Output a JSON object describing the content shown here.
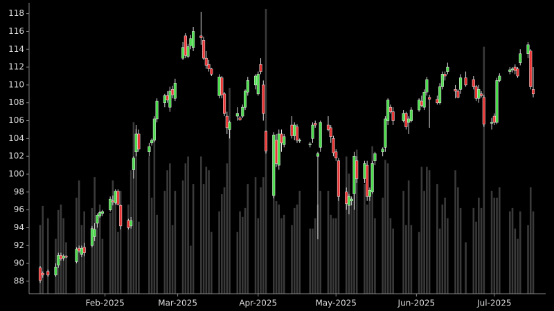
{
  "chart_data": {
    "type": "candlestick",
    "x": [
      "2025-01-07",
      "2025-01-08",
      "2025-01-10",
      "2025-01-13",
      "2025-01-14",
      "2025-01-15",
      "2025-01-16",
      "2025-01-17",
      "2025-01-21",
      "2025-01-22",
      "2025-01-23",
      "2025-01-24",
      "2025-01-27",
      "2025-01-28",
      "2025-01-29",
      "2025-01-30",
      "2025-01-31",
      "2025-02-03",
      "2025-02-04",
      "2025-02-05",
      "2025-02-06",
      "2025-02-07",
      "2025-02-10",
      "2025-02-11",
      "2025-02-12",
      "2025-02-13",
      "2025-02-14",
      "2025-02-18",
      "2025-02-19",
      "2025-02-20",
      "2025-02-21",
      "2025-02-24",
      "2025-02-25",
      "2025-02-26",
      "2025-02-27",
      "2025-02-28",
      "2025-03-03",
      "2025-03-04",
      "2025-03-05",
      "2025-03-06",
      "2025-03-07",
      "2025-03-10",
      "2025-03-11",
      "2025-03-12",
      "2025-03-13",
      "2025-03-14",
      "2025-03-17",
      "2025-03-18",
      "2025-03-19",
      "2025-03-20",
      "2025-03-21",
      "2025-03-24",
      "2025-03-25",
      "2025-03-26",
      "2025-03-27",
      "2025-03-28",
      "2025-03-31",
      "2025-04-01",
      "2025-04-02",
      "2025-04-03",
      "2025-04-04",
      "2025-04-07",
      "2025-04-08",
      "2025-04-09",
      "2025-04-10",
      "2025-04-11",
      "2025-04-14",
      "2025-04-15",
      "2025-04-16",
      "2025-04-17",
      "2025-04-21",
      "2025-04-22",
      "2025-04-23",
      "2025-04-24",
      "2025-04-25",
      "2025-04-28",
      "2025-04-29",
      "2025-04-30",
      "2025-05-01",
      "2025-05-02",
      "2025-05-05",
      "2025-05-06",
      "2025-05-07",
      "2025-05-08",
      "2025-05-09",
      "2025-05-12",
      "2025-05-13",
      "2025-05-14",
      "2025-05-15",
      "2025-05-16",
      "2025-05-19",
      "2025-05-20",
      "2025-05-21",
      "2025-05-22",
      "2025-05-23",
      "2025-05-27",
      "2025-05-28",
      "2025-05-29",
      "2025-05-30",
      "2025-06-02",
      "2025-06-03",
      "2025-06-04",
      "2025-06-05",
      "2025-06-06",
      "2025-06-09",
      "2025-06-10",
      "2025-06-11",
      "2025-06-12",
      "2025-06-13",
      "2025-06-16",
      "2025-06-17",
      "2025-06-18",
      "2025-06-20",
      "2025-06-23",
      "2025-06-24",
      "2025-06-25",
      "2025-06-26",
      "2025-06-27",
      "2025-06-30",
      "2025-07-01",
      "2025-07-02",
      "2025-07-03",
      "2025-07-07",
      "2025-07-08",
      "2025-07-09",
      "2025-07-10",
      "2025-07-11",
      "2025-07-14",
      "2025-07-15",
      "2025-07-16"
    ],
    "ohlc": [
      [
        89.5,
        89.7,
        87.8,
        88.1
      ],
      [
        88.9,
        89.1,
        88.4,
        88.7
      ],
      [
        89.1,
        89.3,
        88.5,
        88.7
      ],
      [
        88.7,
        90.0,
        88.5,
        89.6
      ],
      [
        89.8,
        91.2,
        89.5,
        90.9
      ],
      [
        90.9,
        91.2,
        90.3,
        90.5
      ],
      [
        90.6,
        91.0,
        90.3,
        90.8
      ],
      [
        90.8,
        90.9,
        90.6,
        90.7
      ],
      [
        90.2,
        91.8,
        90.0,
        91.6
      ],
      [
        91.7,
        92.0,
        91.2,
        91.4
      ],
      [
        91.0,
        92.0,
        90.7,
        91.7
      ],
      [
        91.8,
        92.3,
        90.8,
        91.2
      ],
      [
        92.0,
        94.2,
        91.8,
        93.9
      ],
      [
        93.0,
        94.5,
        92.5,
        93.8
      ],
      [
        94.5,
        95.6,
        94.0,
        95.4
      ],
      [
        95.3,
        95.9,
        95.1,
        95.7
      ],
      [
        95.6,
        96.0,
        95.3,
        95.8
      ],
      [
        96.0,
        97.5,
        95.8,
        97.2
      ],
      [
        97.0,
        97.6,
        96.5,
        96.9
      ],
      [
        96.8,
        98.3,
        96.6,
        98.1
      ],
      [
        98.1,
        98.3,
        96.5,
        96.6
      ],
      [
        96.5,
        96.6,
        93.8,
        94.2
      ],
      [
        94.8,
        95.0,
        93.8,
        94.0
      ],
      [
        94.2,
        95.2,
        93.9,
        94.8
      ],
      [
        100.5,
        102.0,
        99.5,
        101.8
      ],
      [
        102.5,
        105.5,
        102.0,
        104.5
      ],
      [
        104.5,
        105.0,
        102.5,
        102.8
      ],
      [
        102.5,
        103.5,
        102.0,
        103.1
      ],
      [
        103.5,
        104.0,
        103.2,
        103.8
      ],
      [
        103.8,
        106.5,
        103.6,
        106.2
      ],
      [
        106.2,
        108.5,
        105.8,
        108.2
      ],
      [
        108.0,
        109.0,
        107.5,
        108.8
      ],
      [
        108.8,
        109.3,
        108.0,
        108.3
      ],
      [
        107.5,
        109.8,
        107.0,
        109.3
      ],
      [
        109.5,
        109.9,
        108.5,
        108.9
      ],
      [
        108.5,
        110.7,
        108.2,
        110.2
      ],
      [
        113.0,
        114.8,
        112.8,
        114.2
      ],
      [
        115.5,
        115.8,
        113.0,
        113.3
      ],
      [
        113.2,
        114.6,
        113.0,
        114.3
      ],
      [
        114.4,
        115.6,
        114.0,
        115.2
      ],
      [
        114.2,
        116.5,
        113.8,
        116.0
      ],
      [
        115.5,
        118.2,
        114.5,
        115.3
      ],
      [
        115.0,
        115.4,
        112.8,
        113.0
      ],
      [
        113.0,
        113.8,
        111.8,
        112.2
      ],
      [
        112.3,
        112.8,
        111.5,
        111.8
      ],
      [
        111.8,
        111.9,
        111.0,
        111.2
      ],
      [
        108.8,
        111.2,
        108.5,
        110.9
      ],
      [
        110.8,
        111.0,
        108.5,
        108.9
      ],
      [
        109.0,
        109.2,
        106.5,
        106.8
      ],
      [
        106.5,
        107.0,
        104.5,
        105.2
      ],
      [
        105.0,
        106.0,
        104.0,
        105.8
      ],
      [
        106.5,
        107.5,
        106.0,
        106.8
      ],
      [
        106.3,
        106.5,
        106.0,
        106.1
      ],
      [
        106.5,
        107.8,
        106.3,
        107.5
      ],
      [
        107.5,
        109.5,
        107.2,
        109.3
      ],
      [
        109.2,
        110.9,
        108.8,
        110.5
      ],
      [
        110.0,
        111.2,
        109.5,
        111.0
      ],
      [
        109.0,
        111.5,
        108.8,
        111.2
      ],
      [
        112.3,
        113.0,
        111.2,
        111.5
      ],
      [
        110.0,
        110.5,
        106.0,
        106.8
      ],
      [
        104.8,
        104.9,
        102.3,
        102.6
      ],
      [
        97.6,
        104.7,
        97.3,
        104.4
      ],
      [
        103.8,
        104.5,
        100.8,
        101.2
      ],
      [
        101.0,
        105.0,
        100.5,
        104.5
      ],
      [
        104.5,
        105.0,
        102.5,
        103.5
      ],
      [
        103.3,
        104.5,
        103.0,
        104.2
      ],
      [
        105.5,
        106.5,
        104.0,
        104.3
      ],
      [
        104.3,
        105.8,
        103.8,
        105.5
      ],
      [
        105.3,
        105.6,
        103.5,
        103.8
      ],
      [
        103.8,
        104.0,
        103.5,
        103.8
      ],
      [
        103.3,
        103.6,
        103.0,
        103.4
      ],
      [
        104.0,
        105.8,
        103.5,
        105.5
      ],
      [
        105.7,
        106.0,
        105.2,
        105.5
      ],
      [
        102.0,
        102.5,
        92.7,
        102.3
      ],
      [
        103.0,
        106.0,
        102.5,
        105.8
      ],
      [
        105.5,
        106.5,
        104.8,
        105.0
      ],
      [
        105.2,
        105.5,
        103.5,
        104.2
      ],
      [
        104.0,
        104.3,
        102.0,
        102.4
      ],
      [
        102.5,
        102.8,
        101.5,
        101.8
      ],
      [
        101.5,
        101.8,
        97.0,
        97.5
      ],
      [
        98.0,
        98.5,
        96.0,
        96.7
      ],
      [
        96.5,
        97.8,
        95.5,
        97.5
      ],
      [
        97.0,
        97.5,
        96.5,
        97.2
      ],
      [
        97.8,
        102.5,
        96.0,
        102.0
      ],
      [
        101.5,
        102.0,
        99.0,
        99.5
      ],
      [
        99.5,
        101.5,
        99.0,
        101.2
      ],
      [
        101.0,
        101.5,
        97.0,
        97.5
      ],
      [
        97.5,
        98.5,
        97.0,
        98.2
      ],
      [
        98.0,
        101.5,
        97.8,
        101.2
      ],
      [
        101.5,
        102.5,
        101.0,
        102.3
      ],
      [
        102.5,
        103.0,
        102.0,
        102.8
      ],
      [
        103.0,
        106.5,
        102.5,
        106.2
      ],
      [
        106.0,
        108.5,
        105.5,
        108.3
      ],
      [
        107.5,
        107.8,
        106.8,
        107.0
      ],
      [
        107.0,
        107.5,
        105.5,
        106.0
      ],
      [
        106.0,
        107.2,
        105.8,
        106.8
      ],
      [
        106.8,
        107.0,
        105.0,
        105.3
      ],
      [
        105.8,
        106.5,
        104.5,
        106.2
      ],
      [
        106.0,
        107.5,
        105.8,
        107.2
      ],
      [
        107.2,
        108.5,
        107.0,
        108.3
      ],
      [
        108.2,
        108.8,
        107.5,
        107.7
      ],
      [
        107.5,
        109.5,
        107.2,
        109.2
      ],
      [
        109.2,
        110.9,
        108.8,
        110.6
      ],
      [
        108.6,
        108.9,
        105.2,
        108.4
      ],
      [
        108.4,
        108.8,
        107.8,
        108.0
      ],
      [
        108.0,
        110.2,
        107.8,
        109.8
      ],
      [
        109.8,
        111.5,
        109.5,
        111.2
      ],
      [
        111.2,
        111.5,
        110.5,
        111.0
      ],
      [
        111.5,
        112.5,
        111.2,
        112.0
      ],
      [
        109.5,
        110.0,
        108.5,
        109.3
      ],
      [
        109.3,
        109.5,
        108.5,
        108.6
      ],
      [
        109.5,
        111.2,
        109.0,
        110.8
      ],
      [
        110.8,
        111.5,
        109.8,
        110.0
      ],
      [
        110.6,
        111.0,
        109.5,
        109.8
      ],
      [
        109.8,
        110.0,
        108.2,
        108.5
      ],
      [
        108.5,
        110.0,
        108.0,
        109.5
      ],
      [
        109.0,
        109.3,
        108.6,
        108.8
      ],
      [
        108.6,
        108.9,
        105.3,
        105.6
      ],
      [
        105.7,
        106.3,
        105.0,
        105.8
      ],
      [
        106.5,
        106.8,
        105.5,
        105.8
      ],
      [
        105.8,
        110.8,
        105.6,
        110.5
      ],
      [
        110.5,
        111.3,
        110.3,
        111.0
      ],
      [
        111.5,
        112.0,
        111.2,
        111.7
      ],
      [
        111.7,
        112.0,
        111.4,
        111.8
      ],
      [
        112.0,
        112.3,
        111.2,
        111.6
      ],
      [
        111.8,
        112.0,
        110.8,
        111.0
      ],
      [
        112.5,
        114.0,
        112.2,
        113.5
      ],
      [
        113.5,
        114.8,
        113.0,
        114.5
      ],
      [
        113.8,
        114.0,
        109.5,
        109.8
      ],
      [
        109.5,
        112.0,
        108.6,
        109.0
      ]
    ],
    "volume": [
      100,
      128,
      110,
      80,
      122,
      130,
      110,
      75,
      140,
      165,
      100,
      120,
      125,
      170,
      110,
      130,
      80,
      118,
      165,
      135,
      90,
      150,
      130,
      180,
      250,
      240,
      105,
      200,
      140,
      240,
      115,
      150,
      180,
      190,
      100,
      150,
      165,
      190,
      200,
      70,
      160,
      200,
      160,
      185,
      180,
      90,
      120,
      145,
      155,
      190,
      300,
      90,
      120,
      112,
      125,
      160,
      170,
      110,
      155,
      170,
      415,
      160,
      135,
      130,
      110,
      115,
      100,
      125,
      130,
      150,
      95,
      95,
      110,
      130,
      150,
      150,
      115,
      110,
      110,
      180,
      200,
      175,
      140,
      150,
      210,
      160,
      130,
      145,
      215,
      110,
      140,
      195,
      190,
      110,
      95,
      150,
      100,
      165,
      100,
      90,
      185,
      150,
      185,
      180,
      160,
      95,
      130,
      140,
      110,
      180,
      155,
      125,
      75,
      125,
      105,
      140,
      125,
      360,
      150,
      140,
      140,
      155,
      120,
      125,
      95,
      80,
      120,
      100,
      155,
      120
    ],
    "up_color": "#4ddc4d",
    "down_color": "#e83434",
    "volume_color": "#3a3a3a",
    "xlim": [
      "2025-01-03",
      "2025-07-20"
    ],
    "xticks": [
      {
        "value": "2025-02-01",
        "label": "Feb-2025"
      },
      {
        "value": "2025-03-01",
        "label": "Mar-2025"
      },
      {
        "value": "2025-04-01",
        "label": "Apr-2025"
      },
      {
        "value": "2025-05-01",
        "label": "May-2025"
      },
      {
        "value": "2025-06-01",
        "label": "Jun-2025"
      },
      {
        "value": "2025-07-01",
        "label": "Jul-2025"
      }
    ],
    "ylim": [
      86.6,
      118.9
    ],
    "yticks": [
      88,
      90,
      92,
      94,
      96,
      98,
      100,
      102,
      104,
      106,
      108,
      110,
      112,
      114,
      116,
      118
    ],
    "vlim": [
      0,
      420
    ]
  }
}
